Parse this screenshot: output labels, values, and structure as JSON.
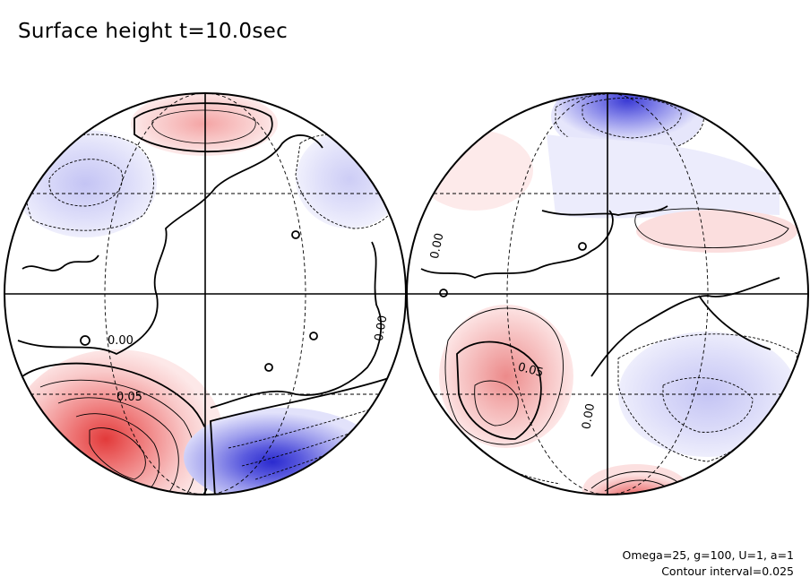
{
  "title": "Surface height t=10.0sec",
  "annotation_params": "Omega=25, g=100, U=1, a=1",
  "annotation_interval": "Contour interval=0.025",
  "colors": {
    "positive": "#e04040",
    "negative": "#3333cc",
    "grid": "#000000",
    "background": "#ffffff"
  },
  "chart_data": {
    "type": "contour-map",
    "title": "Surface height t=10.0sec",
    "projection": "orthographic, two hemispheres",
    "contour_interval": 0.025,
    "levels": [
      -0.1,
      -0.075,
      -0.05,
      -0.025,
      0.0,
      0.025,
      0.05,
      0.075,
      0.1,
      0.125,
      0.15
    ],
    "contour_labels": [
      {
        "hemisphere": "left",
        "text": "0.00"
      },
      {
        "hemisphere": "left",
        "text": "0.05"
      },
      {
        "hemisphere": "left",
        "text": "0.00"
      },
      {
        "hemisphere": "right",
        "text": "0.00"
      },
      {
        "hemisphere": "right",
        "text": "0.05"
      },
      {
        "hemisphere": "right",
        "text": "0.00"
      }
    ],
    "hemispheres": [
      {
        "name": "left",
        "features": [
          {
            "kind": "high",
            "location": "lower-left",
            "peak": 0.15
          },
          {
            "kind": "high",
            "location": "top",
            "peak": 0.05
          },
          {
            "kind": "low",
            "location": "upper-left",
            "peak": -0.05
          },
          {
            "kind": "low",
            "location": "lower-right",
            "peak": -0.1
          }
        ]
      },
      {
        "name": "right",
        "features": [
          {
            "kind": "high",
            "location": "lower-left",
            "peak": 0.075
          },
          {
            "kind": "high",
            "location": "bottom",
            "peak": 0.1
          },
          {
            "kind": "low",
            "location": "top",
            "peak": -0.075
          },
          {
            "kind": "low",
            "location": "lower-right",
            "peak": -0.05
          }
        ]
      }
    ],
    "parameters": {
      "Omega": 25,
      "g": 100,
      "U": 1,
      "a": 1
    }
  }
}
